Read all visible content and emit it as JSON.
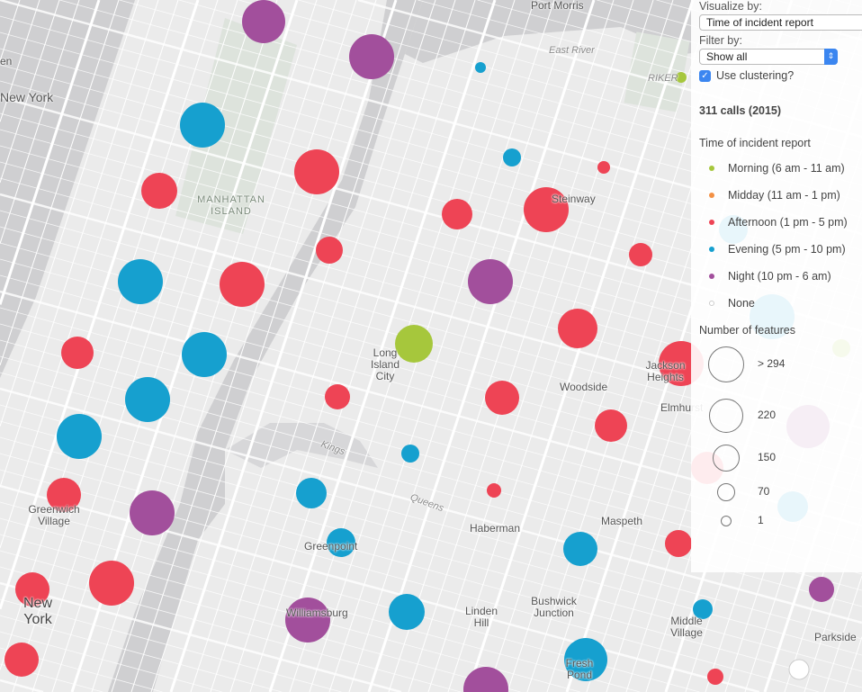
{
  "panel": {
    "visualize_label": "Visualize by:",
    "visualize_value": "Time of incident report",
    "filter_label": "Filter by:",
    "filter_value": "Show all",
    "clustering_label": "Use clustering?",
    "clustering_checked": true,
    "count_title": "311 calls (2015)",
    "legend_title": "Time of incident report",
    "legend": [
      {
        "key": "morning",
        "label": "Morning (6 am - 11 am)",
        "color": "#a6c73c"
      },
      {
        "key": "midday",
        "label": "Midday (11 am - 1 pm)",
        "color": "#f39044"
      },
      {
        "key": "afternoon",
        "label": "Afternoon (1 pm - 5 pm)",
        "color": "#ee4455"
      },
      {
        "key": "evening",
        "label": "Evening (5 pm - 10 pm)",
        "color": "#16a0cf"
      },
      {
        "key": "night",
        "label": "Night (10 pm - 6 am)",
        "color": "#a24f9c"
      },
      {
        "key": "none",
        "label": "None",
        "color": "#ffffff"
      }
    ],
    "size_title": "Number of features",
    "sizes": [
      ">  294",
      "220",
      "150",
      "70",
      "1"
    ]
  },
  "map": {
    "labels": [
      "Port Morris",
      "East River",
      "RIKER",
      "MANHATTAN ISLAND",
      "Steinway",
      "Long Island City",
      "Woodside",
      "Jackson Heights",
      "Elmhurst",
      "Kings",
      "Queens",
      "Haberman",
      "Maspeth",
      "Greenwich Village",
      "Greenpoint",
      "New York",
      "Williamsburg",
      "Linden Hill",
      "Bushwick Junction",
      "Middle Village",
      "Fresh Pond",
      "Parkside",
      "en",
      "New York"
    ]
  }
}
